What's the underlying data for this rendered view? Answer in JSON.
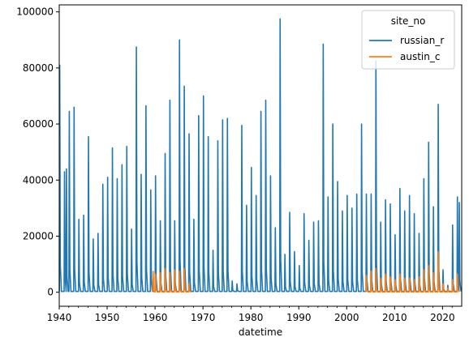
{
  "chart_data": {
    "type": "line",
    "title": "",
    "xlabel": "datetime",
    "ylabel": "",
    "xlim": [
      1940,
      2024
    ],
    "ylim": [
      -5000,
      102500
    ],
    "x_ticks": [
      1940,
      1950,
      1960,
      1970,
      1980,
      1990,
      2000,
      2010,
      2020
    ],
    "y_ticks": [
      0,
      20000,
      40000,
      60000,
      80000,
      100000
    ],
    "grid": false,
    "legend": {
      "title": "site_no",
      "placement": "top-right"
    },
    "series": [
      {
        "name": "russian_r",
        "color": "#1f77b4",
        "annual_peaks": [
          [
            1940.1,
            81000
          ],
          [
            1941.1,
            43000
          ],
          [
            1941.5,
            44000
          ],
          [
            1942.1,
            64500
          ],
          [
            1943.1,
            66000
          ],
          [
            1944.1,
            26000
          ],
          [
            1945.1,
            27500
          ],
          [
            1946.1,
            55500
          ],
          [
            1947.1,
            19000
          ],
          [
            1948.1,
            21000
          ],
          [
            1949.1,
            38500
          ],
          [
            1950.1,
            41000
          ],
          [
            1951.1,
            51500
          ],
          [
            1952.1,
            40500
          ],
          [
            1953.1,
            45500
          ],
          [
            1954.1,
            52000
          ],
          [
            1955.1,
            22500
          ],
          [
            1956.1,
            87500
          ],
          [
            1957.1,
            42000
          ],
          [
            1958.1,
            66500
          ],
          [
            1959.1,
            36500
          ],
          [
            1960.1,
            41500
          ],
          [
            1961.1,
            25500
          ],
          [
            1962.1,
            49500
          ],
          [
            1963.1,
            68500
          ],
          [
            1964.1,
            25500
          ],
          [
            1965.1,
            90000
          ],
          [
            1966.1,
            73500
          ],
          [
            1967.1,
            56500
          ],
          [
            1968.1,
            26000
          ],
          [
            1969.1,
            63000
          ],
          [
            1970.1,
            70000
          ],
          [
            1971.1,
            55500
          ],
          [
            1972.1,
            15000
          ],
          [
            1973.1,
            54000
          ],
          [
            1974.1,
            61500
          ],
          [
            1975.1,
            62000
          ],
          [
            1976.1,
            4000
          ],
          [
            1977.1,
            3000
          ],
          [
            1978.1,
            59500
          ],
          [
            1979.1,
            31000
          ],
          [
            1980.1,
            44500
          ],
          [
            1981.1,
            34500
          ],
          [
            1982.1,
            64500
          ],
          [
            1983.1,
            68500
          ],
          [
            1984.1,
            41500
          ],
          [
            1985.1,
            23000
          ],
          [
            1986.1,
            97500
          ],
          [
            1987.1,
            13500
          ],
          [
            1988.1,
            28500
          ],
          [
            1989.1,
            14500
          ],
          [
            1990.1,
            9500
          ],
          [
            1991.1,
            28000
          ],
          [
            1992.1,
            18500
          ],
          [
            1993.1,
            25000
          ],
          [
            1994.1,
            25500
          ],
          [
            1995.1,
            88500
          ],
          [
            1996.1,
            34000
          ],
          [
            1997.1,
            60000
          ],
          [
            1998.1,
            39500
          ],
          [
            1999.1,
            29000
          ],
          [
            2000.1,
            34500
          ],
          [
            2001.1,
            30000
          ],
          [
            2002.1,
            35000
          ],
          [
            2003.1,
            60000
          ],
          [
            2004.1,
            35000
          ],
          [
            2005.1,
            35000
          ],
          [
            2006.1,
            82500
          ],
          [
            2007.1,
            25000
          ],
          [
            2008.1,
            33000
          ],
          [
            2009.1,
            31500
          ],
          [
            2010.1,
            20500
          ],
          [
            2011.1,
            37000
          ],
          [
            2012.1,
            29000
          ],
          [
            2013.1,
            34500
          ],
          [
            2014.1,
            28000
          ],
          [
            2015.1,
            21000
          ],
          [
            2016.1,
            40500
          ],
          [
            2017.1,
            53500
          ],
          [
            2018.1,
            30500
          ],
          [
            2019.1,
            67000
          ],
          [
            2020.1,
            8000
          ],
          [
            2021.1,
            2500
          ],
          [
            2022.1,
            24000
          ],
          [
            2023.1,
            34000
          ],
          [
            2023.5,
            32000
          ]
        ]
      },
      {
        "name": "austin_c",
        "color": "#ff7f0e",
        "annual_peaks": [
          [
            1959.6,
            7500
          ],
          [
            1960.1,
            6500
          ],
          [
            1961.1,
            7000
          ],
          [
            1962.1,
            8500
          ],
          [
            1963.1,
            7000
          ],
          [
            1964.1,
            8000
          ],
          [
            1965.1,
            7500
          ],
          [
            1966.1,
            8500
          ],
          [
            1967.1,
            3000
          ],
          [
            2004.1,
            6000
          ],
          [
            2005.1,
            7500
          ],
          [
            2006.1,
            8500
          ],
          [
            2007.1,
            5000
          ],
          [
            2008.1,
            6500
          ],
          [
            2009.1,
            5500
          ],
          [
            2010.1,
            4500
          ],
          [
            2011.1,
            6500
          ],
          [
            2012.1,
            5000
          ],
          [
            2013.1,
            5000
          ],
          [
            2014.1,
            4500
          ],
          [
            2015.1,
            5500
          ],
          [
            2016.1,
            8000
          ],
          [
            2017.1,
            9500
          ],
          [
            2018.1,
            7000
          ],
          [
            2019.1,
            14500
          ],
          [
            2020.1,
            3000
          ],
          [
            2021.1,
            1500
          ],
          [
            2022.1,
            4500
          ],
          [
            2023.1,
            6500
          ]
        ]
      }
    ]
  }
}
